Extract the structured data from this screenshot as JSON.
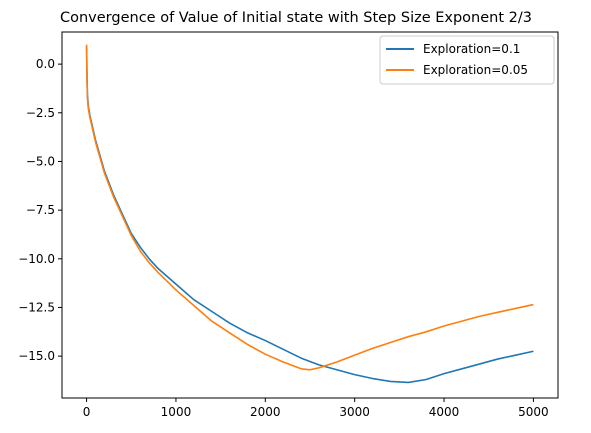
{
  "chart_data": {
    "type": "line",
    "title": "Convergence of Value of Initial state with Step Size Exponent 2/3",
    "xlabel": "",
    "ylabel": "",
    "xlim": [
      -275,
      5275
    ],
    "ylim": [
      -17.15,
      1.65
    ],
    "xticks": [
      0,
      1000,
      2000,
      3000,
      4000,
      5000
    ],
    "xtick_labels": [
      "0",
      "1000",
      "2000",
      "3000",
      "4000",
      "5000"
    ],
    "yticks": [
      0.0,
      -2.5,
      -5.0,
      -7.5,
      -10.0,
      -12.5,
      -15.0
    ],
    "ytick_labels": [
      "0.0",
      "−2.5",
      "−5.0",
      "−7.5",
      "−10.0",
      "−12.5",
      "−15.0"
    ],
    "grid": false,
    "legend_position": "top-right",
    "series": [
      {
        "name": "Exploration=0.1",
        "color": "#1f77b4",
        "x": [
          0,
          5,
          10,
          20,
          40,
          70,
          100,
          150,
          200,
          300,
          400,
          500,
          600,
          700,
          800,
          1000,
          1200,
          1400,
          1600,
          1800,
          2000,
          2200,
          2400,
          2600,
          2800,
          3000,
          3200,
          3400,
          3600,
          3800,
          4000,
          4200,
          4400,
          4600,
          4800,
          5000
        ],
        "y": [
          0.9,
          -0.7,
          -1.6,
          -2.2,
          -2.7,
          -3.3,
          -3.9,
          -4.7,
          -5.5,
          -6.7,
          -7.7,
          -8.7,
          -9.4,
          -10.0,
          -10.5,
          -11.3,
          -12.1,
          -12.7,
          -13.3,
          -13.8,
          -14.2,
          -14.65,
          -15.1,
          -15.45,
          -15.7,
          -15.95,
          -16.15,
          -16.3,
          -16.35,
          -16.2,
          -15.9,
          -15.65,
          -15.4,
          -15.15,
          -14.95,
          -14.75
        ]
      },
      {
        "name": "Exploration=0.05",
        "color": "#ff7f0e",
        "x": [
          0,
          5,
          10,
          20,
          40,
          70,
          100,
          150,
          200,
          300,
          400,
          500,
          600,
          700,
          800,
          1000,
          1200,
          1400,
          1600,
          1800,
          2000,
          2200,
          2400,
          2500,
          2600,
          2800,
          3000,
          3200,
          3400,
          3600,
          3800,
          4000,
          4200,
          4400,
          4600,
          4800,
          5000
        ],
        "y": [
          1.0,
          -0.8,
          -1.8,
          -2.3,
          -2.8,
          -3.4,
          -4.0,
          -4.8,
          -5.6,
          -6.8,
          -7.8,
          -8.8,
          -9.6,
          -10.2,
          -10.7,
          -11.6,
          -12.4,
          -13.2,
          -13.8,
          -14.4,
          -14.9,
          -15.3,
          -15.65,
          -15.7,
          -15.6,
          -15.3,
          -14.95,
          -14.6,
          -14.3,
          -14.0,
          -13.75,
          -13.45,
          -13.2,
          -12.95,
          -12.75,
          -12.55,
          -12.35
        ]
      }
    ]
  }
}
